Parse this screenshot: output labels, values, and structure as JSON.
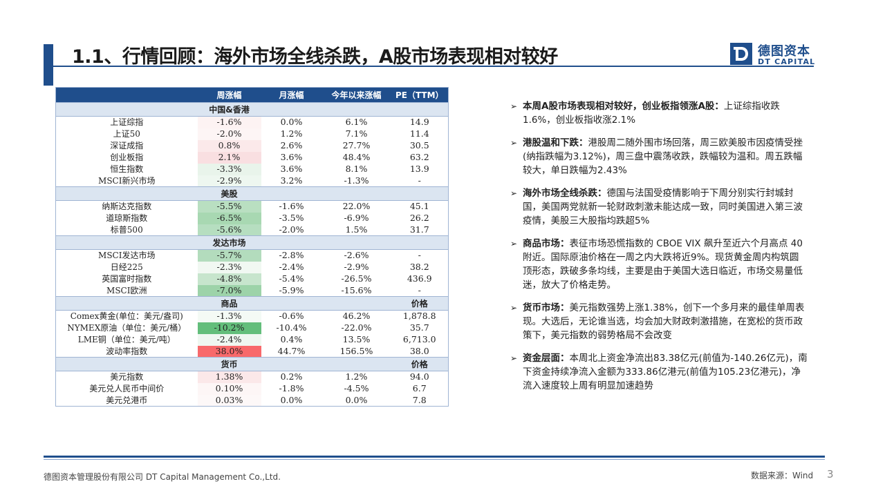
{
  "title": "1.1、行情回顾：海外市场全线杀跌，A股市场表现相对较好",
  "logo": {
    "cn": "德图资本",
    "en": "DT CAPITAL"
  },
  "colors": {
    "brand": "#1f4e8c",
    "section": "#dbe5f1"
  },
  "table": {
    "headers": [
      "",
      "周涨幅",
      "月涨幅",
      "今年以来涨幅",
      "PE（TTM）"
    ],
    "sections": [
      {
        "title": "中国&香港",
        "last_header": "",
        "rows": [
          {
            "name": "上证综指",
            "week": "-1.6%",
            "month": "0.0%",
            "ytd": "6.1%",
            "last": "14.9",
            "bg": "#fdf3f3"
          },
          {
            "name": "上证50",
            "week": "-2.0%",
            "month": "1.2%",
            "ytd": "7.1%",
            "last": "11.4",
            "bg": "#fdf5f5"
          },
          {
            "name": "深证成指",
            "week": "0.8%",
            "month": "2.6%",
            "ytd": "27.7%",
            "last": "30.5",
            "bg": "#fbe9ea"
          },
          {
            "name": "创业板指",
            "week": "2.1%",
            "month": "3.6%",
            "ytd": "48.4%",
            "last": "63.2",
            "bg": "#f9dfe1"
          },
          {
            "name": "恒生指数",
            "week": "-3.3%",
            "month": "3.6%",
            "ytd": "8.1%",
            "last": "13.9",
            "bg": "#e9f4eb"
          },
          {
            "name": "MSCI新兴市场",
            "week": "-2.9%",
            "month": "3.2%",
            "ytd": "-1.3%",
            "last": "-",
            "bg": "#eef7f0"
          }
        ]
      },
      {
        "title": "美股",
        "last_header": "",
        "rows": [
          {
            "name": "纳斯达克指数",
            "week": "-5.5%",
            "month": "-1.6%",
            "ytd": "22.0%",
            "last": "45.1",
            "bg": "#b9dfc1"
          },
          {
            "name": "道琼斯指数",
            "week": "-6.5%",
            "month": "-3.5%",
            "ytd": "-6.9%",
            "last": "26.2",
            "bg": "#a8d8b2"
          },
          {
            "name": "标普500",
            "week": "-5.6%",
            "month": "-2.0%",
            "ytd": "1.5%",
            "last": "31.7",
            "bg": "#b6dec0"
          }
        ]
      },
      {
        "title": "发达市场",
        "last_header": "",
        "rows": [
          {
            "name": "MSCI发达市场",
            "week": "-5.7%",
            "month": "-2.8%",
            "ytd": "-2.6%",
            "last": "-",
            "bg": "#b3dcbd"
          },
          {
            "name": "日经225",
            "week": "-2.3%",
            "month": "-2.4%",
            "ytd": "-2.9%",
            "last": "38.2",
            "bg": "#f1f8f2"
          },
          {
            "name": "英国富时指数",
            "week": "-4.8%",
            "month": "-5.4%",
            "ytd": "-26.5%",
            "last": "436.9",
            "bg": "#c7e5cd"
          },
          {
            "name": "MSCI欧洲",
            "week": "-7.0%",
            "month": "-5.9%",
            "ytd": "-15.6%",
            "last": "-",
            "bg": "#9dd3a9"
          }
        ]
      },
      {
        "title": "商品",
        "last_header": "价格",
        "rows": [
          {
            "name": "Comex黄金(单位：美元/盎司)",
            "week": "-1.3%",
            "month": "-0.6%",
            "ytd": "46.2%",
            "last": "1,878.8",
            "bg": "#f4faf5"
          },
          {
            "name": "NYMEX原油（单位：美元/桶）",
            "week": "-10.2%",
            "month": "-10.4%",
            "ytd": "-22.0%",
            "last": "35.7",
            "bg": "#63be7b"
          },
          {
            "name": "LME铜（单位：美元/吨）",
            "week": "-2.4%",
            "month": "0.4%",
            "ytd": "13.5%",
            "last": "6,713.0",
            "bg": "#eff7f1"
          },
          {
            "name": "波动率指数",
            "week": "38.0%",
            "month": "44.7%",
            "ytd": "156.5%",
            "last": "38.0",
            "bg": "#f8696b"
          }
        ]
      },
      {
        "title": "货币",
        "last_header": "价格",
        "rows": [
          {
            "name": "美元指数",
            "week": "1.38%",
            "month": "0.2%",
            "ytd": "1.2%",
            "last": "94.0",
            "bg": "#fbe8e9"
          },
          {
            "name": "美元兑人民币中间价",
            "week": "0.10%",
            "month": "-1.8%",
            "ytd": "-4.5%",
            "last": "6.7",
            "bg": "#fdf6f6"
          },
          {
            "name": "美元兑港币",
            "week": "0.03%",
            "month": "0.0%",
            "ytd": "0.0%",
            "last": "7.8",
            "bg": "#fdf8f8"
          }
        ]
      }
    ]
  },
  "bullets": [
    {
      "head": "本周A股市场表现相对较好，创业板指领涨A股：",
      "body": "上证综指收跌1.6%，创业板指收涨2.1%"
    },
    {
      "head": "港股温和下跌：",
      "body": "港股周二随外围市场回落，周三欧美股市因疫情受挫(纳指跌幅为3.12%)，周三盘中震荡收跌，跌幅较为温和。周五跌幅较大，单日跌幅为2.43%"
    },
    {
      "head": "海外市场全线杀跌：",
      "body": "德国与法国受疫情影响于下周分别实行封城封国，美国两党就新一轮财政刺激未能达成一致，同时美国进入第三波疫情，美股三大股指均跌超5%"
    },
    {
      "head": "商品市场：",
      "body": "表征市场恐慌指数的 CBOE VIX 飙升至近六个月高点 40 附近。国际原油价格在一周之内大跌将近9%。现货黄金周内构筑圆顶形态，跌破多条均线，主要是由于美国大选日临近，市场交易量低迷，放大了价格走势。"
    },
    {
      "head": "货币市场：",
      "body": "美元指数强势上涨1.38%，创下一个多月来的最佳单周表现。大选后，无论谁当选，均会加大财政刺激措施，在宽松的货币政策下，美元指数的弱势格局不会改变"
    },
    {
      "head": "资金层面：",
      "body": "本周北上资金净流出83.38亿元(前值为-140.26亿元)，南下资金持续净流入金额为333.86亿港元(前值为105.23亿港元)，净流入速度较上周有明显加速趋势"
    }
  ],
  "footer": {
    "company": "德图资本管理股份有限公司  DT Capital  Management  Co.,Ltd.",
    "source": "数据来源：Wind",
    "page": "3"
  }
}
